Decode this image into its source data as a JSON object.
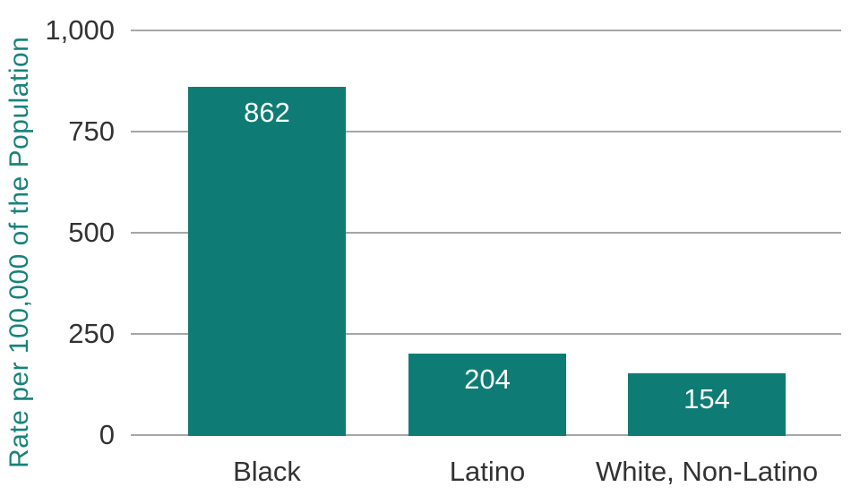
{
  "chart_data": {
    "type": "bar",
    "title": "",
    "xlabel": "",
    "ylabel": "Rate per 100,000 of the Population",
    "categories": [
      "Black",
      "Latino",
      "White, Non-Latino"
    ],
    "values": [
      862,
      204,
      154
    ],
    "bar_value_labels": [
      "862",
      "204",
      "154"
    ],
    "ylim": [
      0,
      1000
    ],
    "yticks": [
      0,
      250,
      500,
      750,
      1000
    ],
    "ytick_labels": [
      "0",
      "250",
      "500",
      "750",
      "1,000"
    ],
    "grid": true,
    "legend": false,
    "bar_label_position": "inside-top",
    "colors": {
      "bar_fill": "#0e7c74",
      "bar_value_text": "#ffffff",
      "axis_tick_text": "#323232",
      "category_text": "#323232",
      "y_axis_title_text": "#17827a",
      "gridline": "#a6a6a6"
    }
  }
}
